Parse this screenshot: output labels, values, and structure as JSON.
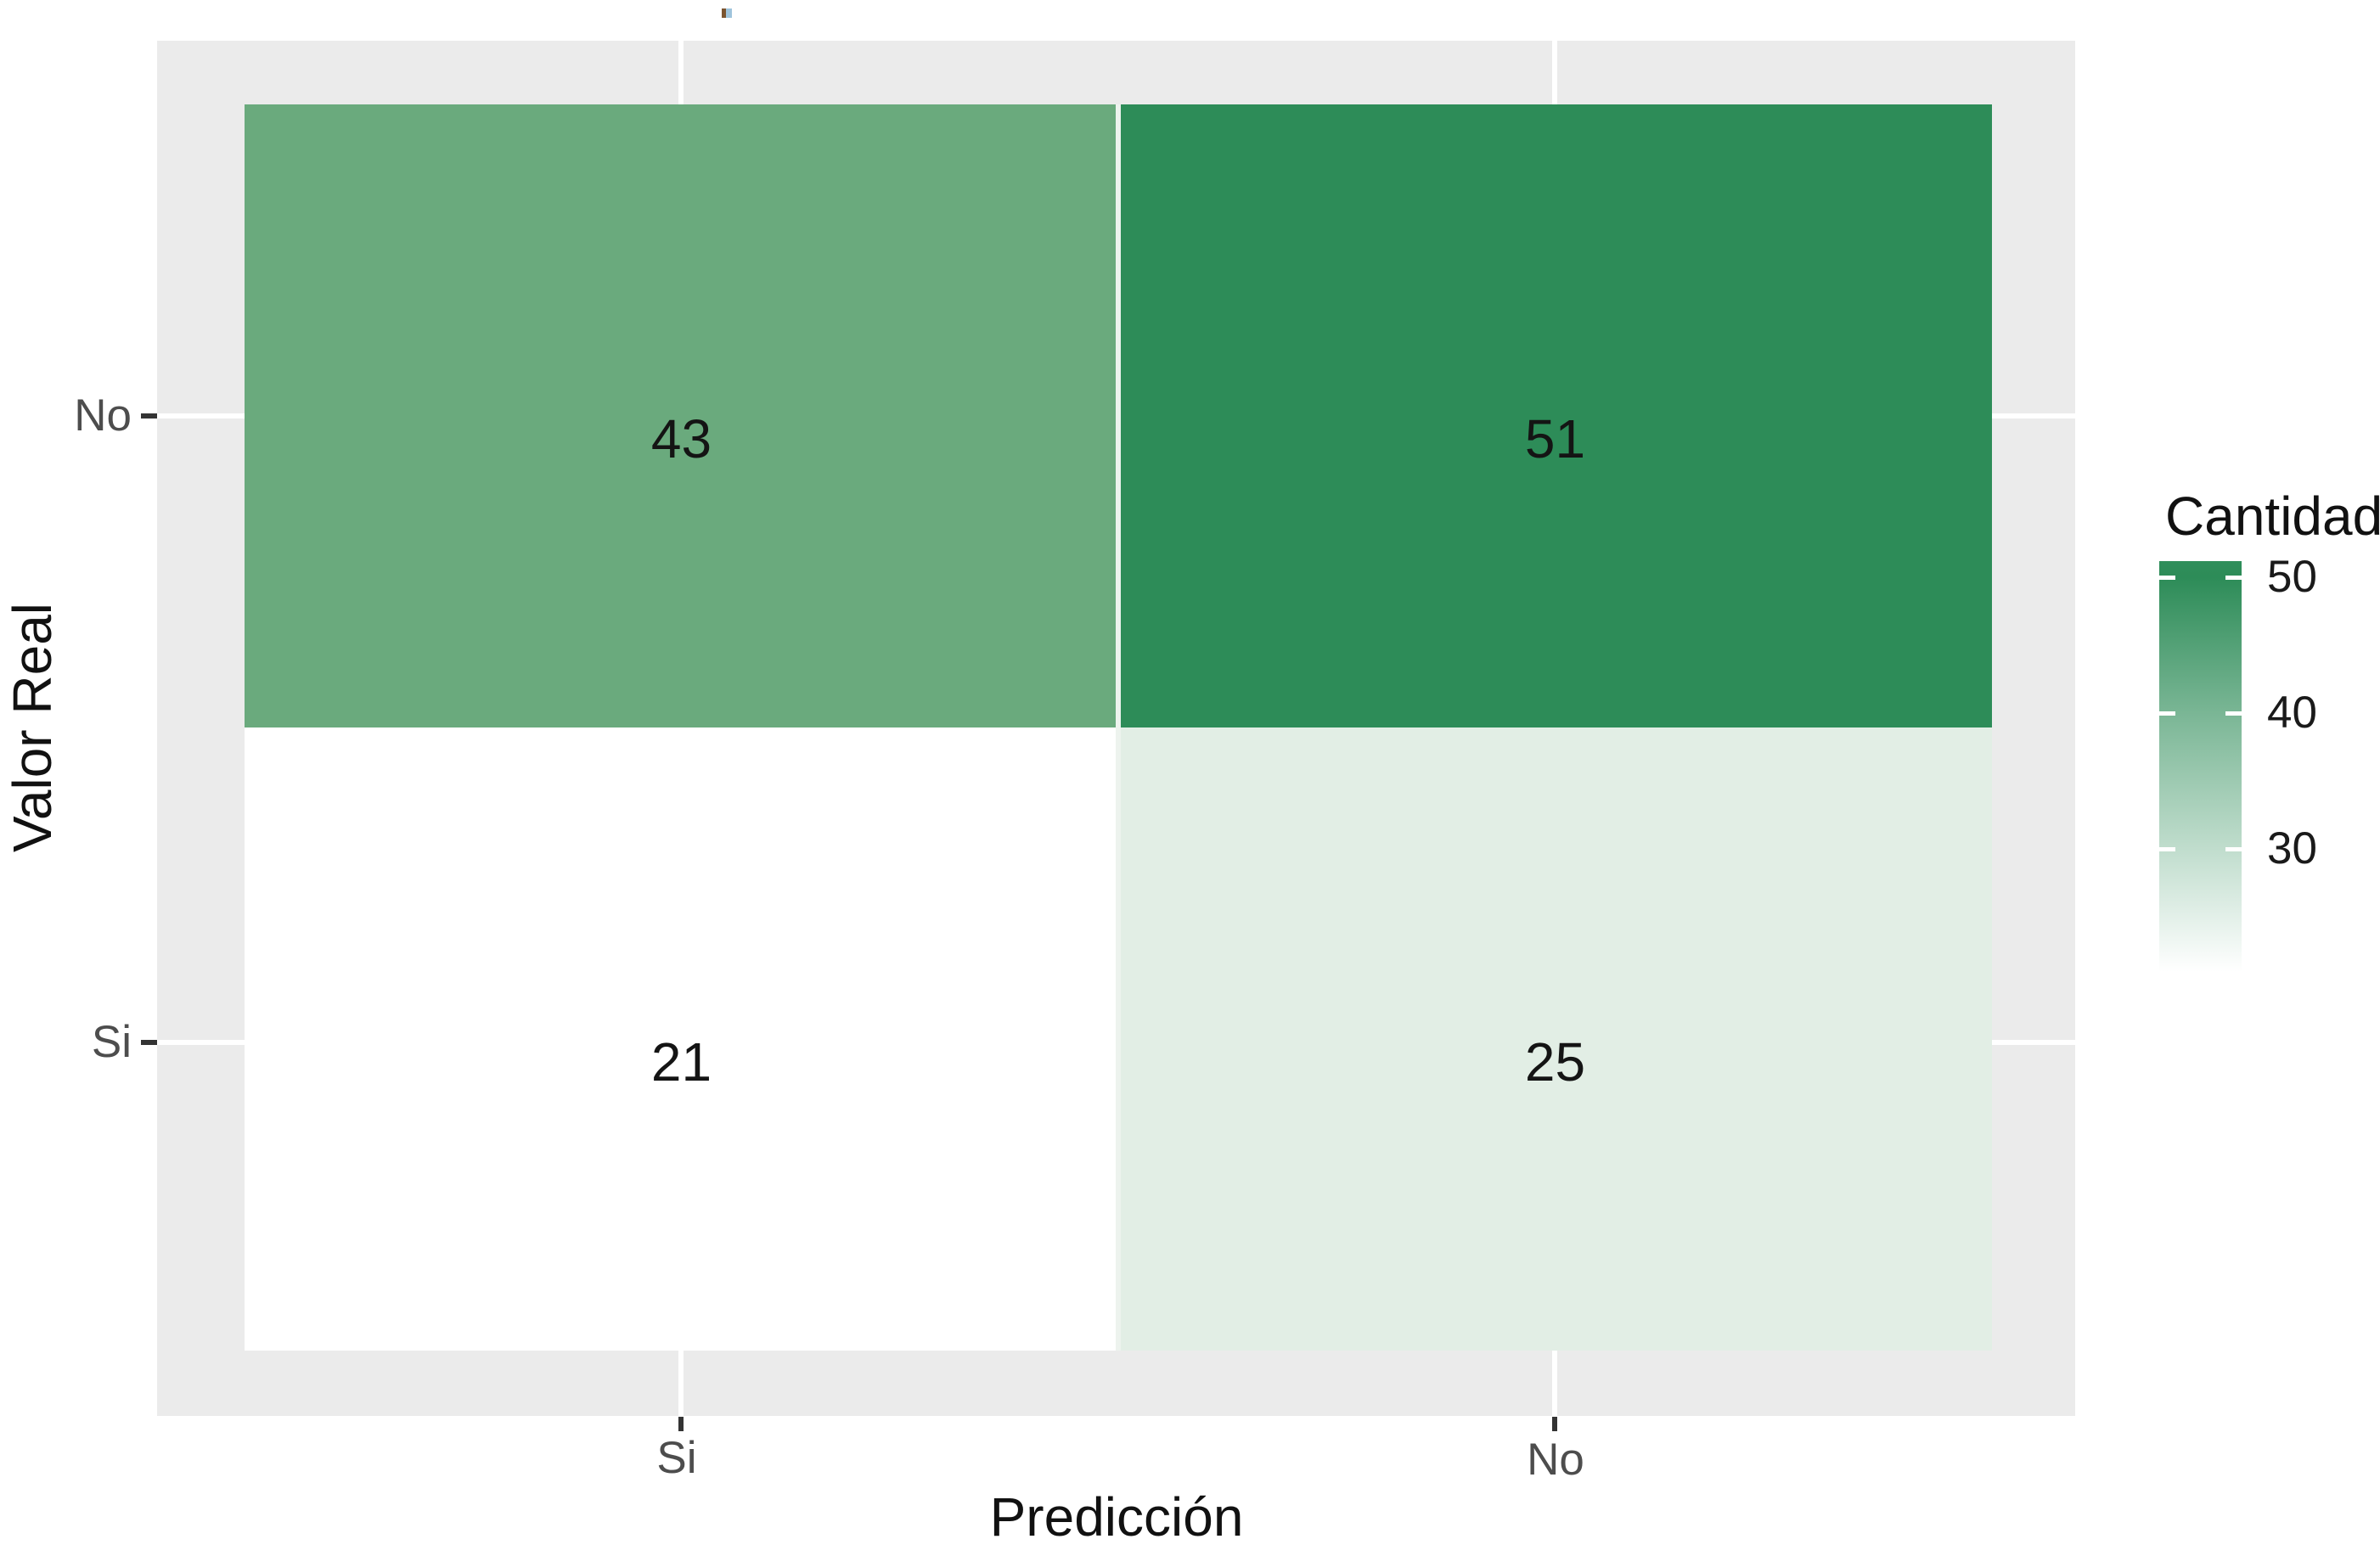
{
  "chart_data": {
    "type": "heatmap",
    "title": "",
    "xlabel": "Predicción",
    "ylabel": "Valor Real",
    "x_categories": [
      "Si",
      "No"
    ],
    "y_categories_top_to_bottom": [
      "No",
      "Si"
    ],
    "x_tick_labels": [
      "Si",
      "No"
    ],
    "y_tick_labels": [
      "No",
      "Si"
    ],
    "cells": [
      {
        "prediccion": "Si",
        "valor_real": "No",
        "value": 43,
        "color": "#6aaa7d"
      },
      {
        "prediccion": "No",
        "valor_real": "No",
        "value": 51,
        "color": "#2d8c58"
      },
      {
        "prediccion": "Si",
        "valor_real": "Si",
        "value": 21,
        "color": "#ffffff"
      },
      {
        "prediccion": "No",
        "valor_real": "Si",
        "value": 25,
        "color": "#e2eee5"
      }
    ],
    "panel_bg": "#ebebeb",
    "grid_color": "#ffffff",
    "tick_color": "#333333",
    "tile_gap_color": "#edf3ee",
    "legend": {
      "title": "Cantidad",
      "ticks": [
        50,
        40,
        30
      ],
      "tick_color": "#ffffff",
      "gradient_high": "#2d8c58",
      "gradient_low": "#ffffff",
      "value_range": [
        21,
        51
      ],
      "position": "right"
    }
  },
  "decorations": {
    "title_dot": {
      "left_color": "#7b5430",
      "right_color": "#9fc4dc"
    }
  }
}
